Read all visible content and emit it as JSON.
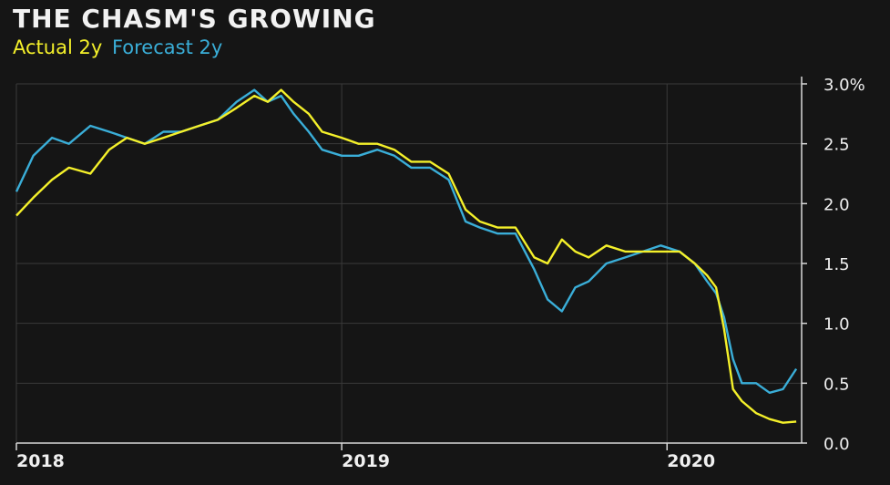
{
  "chart_data": {
    "type": "line",
    "title": "THE CHASM'S GROWING",
    "xlabel": "",
    "ylabel": "",
    "x_ticks": [
      "2018",
      "2019",
      "2020"
    ],
    "y_ticks": [
      "0.0",
      "0.5",
      "1.0",
      "1.5",
      "2.0",
      "2.5",
      "3.0%"
    ],
    "ylim": [
      0,
      3.0
    ],
    "xlim": [
      "2018-01-01",
      "2020-05-31"
    ],
    "grid": true,
    "legend_position": "top-left",
    "series": [
      {
        "name": "Actual 2y",
        "color": "#f4f02a",
        "x": [
          "2018-01-01",
          "2018-01-20",
          "2018-02-10",
          "2018-03-01",
          "2018-03-25",
          "2018-04-15",
          "2018-05-05",
          "2018-05-25",
          "2018-06-15",
          "2018-07-05",
          "2018-07-25",
          "2018-08-15",
          "2018-09-05",
          "2018-09-25",
          "2018-10-10",
          "2018-10-25",
          "2018-11-08",
          "2018-11-25",
          "2018-12-10",
          "2019-01-01",
          "2019-01-20",
          "2019-02-10",
          "2019-03-01",
          "2019-03-20",
          "2019-04-10",
          "2019-05-01",
          "2019-05-20",
          "2019-06-05",
          "2019-06-25",
          "2019-07-15",
          "2019-08-05",
          "2019-08-20",
          "2019-09-05",
          "2019-09-20",
          "2019-10-05",
          "2019-10-25",
          "2019-11-15",
          "2019-12-05",
          "2019-12-25",
          "2020-01-15",
          "2020-02-01",
          "2020-02-15",
          "2020-02-25",
          "2020-03-05",
          "2020-03-15",
          "2020-03-25",
          "2020-04-10",
          "2020-04-25",
          "2020-05-10",
          "2020-05-25"
        ],
        "values": [
          1.9,
          2.05,
          2.2,
          2.3,
          2.25,
          2.45,
          2.55,
          2.5,
          2.55,
          2.6,
          2.65,
          2.7,
          2.8,
          2.9,
          2.85,
          2.95,
          2.85,
          2.75,
          2.6,
          2.55,
          2.5,
          2.5,
          2.45,
          2.35,
          2.35,
          2.25,
          1.95,
          1.85,
          1.8,
          1.8,
          1.55,
          1.5,
          1.7,
          1.6,
          1.55,
          1.65,
          1.6,
          1.6,
          1.6,
          1.6,
          1.5,
          1.4,
          1.3,
          0.95,
          0.45,
          0.35,
          0.25,
          0.2,
          0.17,
          0.18
        ]
      },
      {
        "name": "Forecast 2y",
        "color": "#3aaed8",
        "x": [
          "2018-01-01",
          "2018-01-20",
          "2018-02-10",
          "2018-03-01",
          "2018-03-25",
          "2018-04-15",
          "2018-05-05",
          "2018-05-25",
          "2018-06-15",
          "2018-07-05",
          "2018-07-25",
          "2018-08-15",
          "2018-09-05",
          "2018-09-25",
          "2018-10-10",
          "2018-10-25",
          "2018-11-08",
          "2018-11-25",
          "2018-12-10",
          "2019-01-01",
          "2019-01-20",
          "2019-02-10",
          "2019-03-01",
          "2019-03-20",
          "2019-04-10",
          "2019-05-01",
          "2019-05-20",
          "2019-06-05",
          "2019-06-25",
          "2019-07-15",
          "2019-08-05",
          "2019-08-20",
          "2019-09-05",
          "2019-09-20",
          "2019-10-05",
          "2019-10-25",
          "2019-11-15",
          "2019-12-05",
          "2019-12-25",
          "2020-01-15",
          "2020-02-01",
          "2020-02-15",
          "2020-02-25",
          "2020-03-05",
          "2020-03-15",
          "2020-03-25",
          "2020-04-10",
          "2020-04-25",
          "2020-05-10",
          "2020-05-25"
        ],
        "values": [
          2.1,
          2.4,
          2.55,
          2.5,
          2.65,
          2.6,
          2.55,
          2.5,
          2.6,
          2.6,
          2.65,
          2.7,
          2.85,
          2.95,
          2.85,
          2.9,
          2.75,
          2.6,
          2.45,
          2.4,
          2.4,
          2.45,
          2.4,
          2.3,
          2.3,
          2.2,
          1.85,
          1.8,
          1.75,
          1.75,
          1.45,
          1.2,
          1.1,
          1.3,
          1.35,
          1.5,
          1.55,
          1.6,
          1.65,
          1.6,
          1.5,
          1.35,
          1.25,
          1.05,
          0.7,
          0.5,
          0.5,
          0.42,
          0.45,
          0.62
        ]
      }
    ]
  }
}
